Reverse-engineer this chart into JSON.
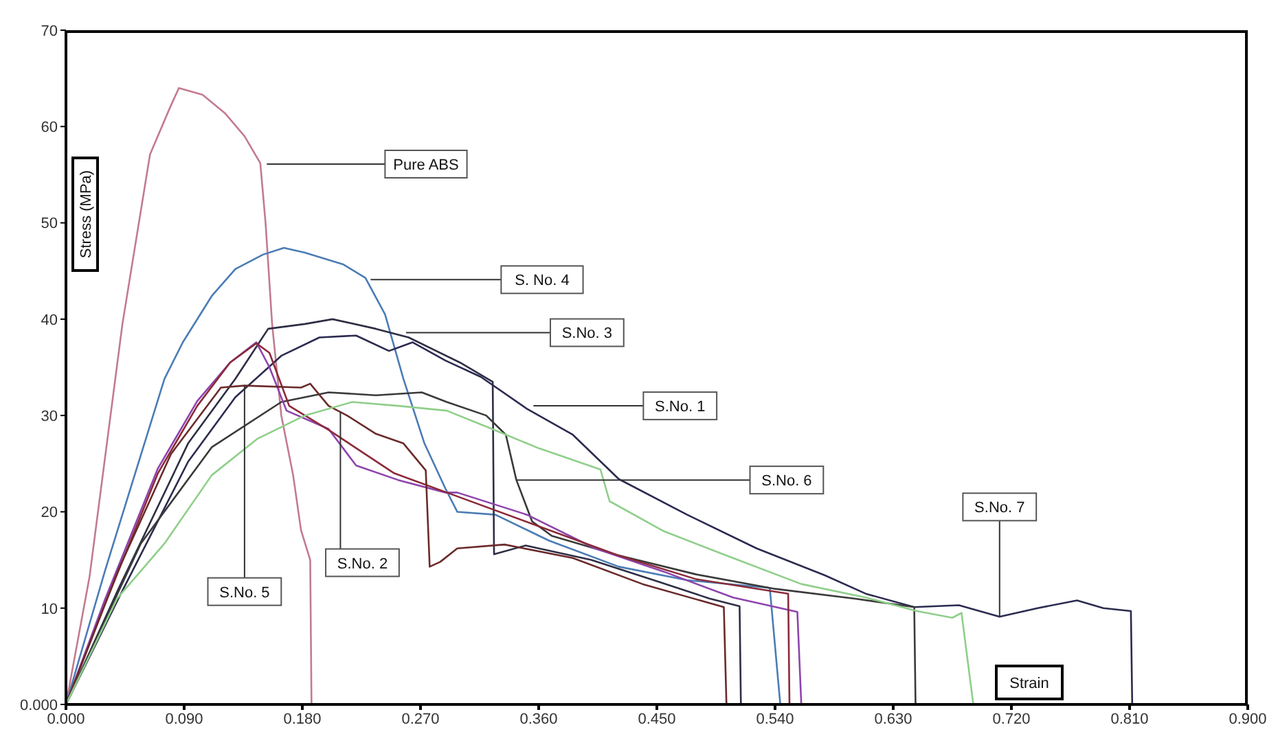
{
  "chart_data": {
    "type": "line",
    "xlabel": "Strain",
    "ylabel": "Stress (MPa)",
    "marker": "none",
    "xlim": [
      0,
      0.9
    ],
    "ylim": [
      0,
      70
    ],
    "xticks": [
      {
        "value": 0,
        "label": "0.000"
      },
      {
        "value": 0.09,
        "label": "0.090"
      },
      {
        "value": 0.18,
        "label": "0.180"
      },
      {
        "value": 0.27,
        "label": "0.270"
      },
      {
        "value": 0.36,
        "label": "0.360"
      },
      {
        "value": 0.45,
        "label": "0.450"
      },
      {
        "value": 0.54,
        "label": "0.540"
      },
      {
        "value": 0.63,
        "label": "0.630"
      },
      {
        "value": 0.72,
        "label": "0.720"
      },
      {
        "value": 0.81,
        "label": "0.810"
      },
      {
        "value": 0.9,
        "label": "0.900"
      }
    ],
    "yticks": [
      {
        "value": 0,
        "label": "0.000"
      },
      10,
      20,
      30,
      40,
      50,
      60,
      70
    ],
    "series": [
      {
        "color": "#c27b8f",
        "x": [
          0,
          0.018,
          0.043,
          0.064,
          0.079,
          0.086,
          0.104,
          0.121,
          0.136,
          0.148,
          0.152,
          0.157,
          0.164,
          0.173,
          0.179,
          0.186,
          0.187
        ],
        "values": [
          0,
          13.3,
          39.5,
          57.1,
          61.9,
          64,
          63.3,
          61.4,
          59,
          56.2,
          50,
          39.5,
          30,
          23.8,
          18.1,
          15,
          0
        ]
      },
      {
        "color": "#4a7cb5",
        "x": [
          0,
          0.03,
          0.075,
          0.089,
          0.111,
          0.129,
          0.15,
          0.166,
          0.182,
          0.211,
          0.228,
          0.243,
          0.257,
          0.273,
          0.289,
          0.298,
          0.327,
          0.368,
          0.421,
          0.473,
          0.536,
          0.544
        ],
        "values": [
          0,
          14,
          33.8,
          37.6,
          42.4,
          45.2,
          46.7,
          47.4,
          46.9,
          45.7,
          44.3,
          40.5,
          33.8,
          27.1,
          22.4,
          20,
          19.7,
          17,
          14.3,
          12.9,
          12.1,
          0
        ]
      },
      {
        "color": "#2e2e45",
        "x": [
          0,
          0.04,
          0.093,
          0.129,
          0.154,
          0.182,
          0.203,
          0.236,
          0.261,
          0.3,
          0.325,
          0.326,
          0.35,
          0.4,
          0.45,
          0.49,
          0.513,
          0.514
        ],
        "values": [
          0,
          12,
          27.1,
          33.8,
          39,
          39.5,
          40,
          39,
          38.1,
          35.5,
          33.5,
          15.6,
          16.5,
          15,
          12.8,
          11,
          10.2,
          0
        ]
      },
      {
        "color": "#2b2b50",
        "x": [
          0,
          0.04,
          0.093,
          0.129,
          0.164,
          0.193,
          0.221,
          0.246,
          0.264,
          0.289,
          0.316,
          0.351,
          0.386,
          0.421,
          0.473,
          0.526,
          0.578,
          0.609,
          0.646,
          0.68,
          0.711,
          0.74,
          0.77,
          0.79,
          0.811,
          0.812
        ],
        "values": [
          0,
          11,
          25.2,
          31.9,
          36.2,
          38.1,
          38.3,
          36.7,
          37.6,
          35.7,
          34,
          30.7,
          28,
          23.4,
          19.7,
          16.2,
          13.4,
          11.5,
          10.1,
          10.3,
          9.1,
          10,
          10.8,
          10,
          9.7,
          0
        ]
      },
      {
        "color": "#3a3a3a",
        "x": [
          0,
          0.057,
          0.111,
          0.164,
          0.2,
          0.236,
          0.271,
          0.29,
          0.32,
          0.335,
          0.343,
          0.355,
          0.37,
          0.42,
          0.48,
          0.54,
          0.6,
          0.646,
          0.647
        ],
        "values": [
          0,
          16.7,
          26.7,
          31.4,
          32.4,
          32.1,
          32.4,
          31.4,
          30,
          28,
          23.3,
          19,
          17.5,
          15.5,
          13.5,
          12,
          11,
          10.1,
          0
        ]
      },
      {
        "color": "#8e44ad",
        "x": [
          0,
          0.03,
          0.07,
          0.1,
          0.125,
          0.145,
          0.155,
          0.168,
          0.2,
          0.221,
          0.253,
          0.289,
          0.298,
          0.351,
          0.403,
          0.455,
          0.508,
          0.557,
          0.56
        ],
        "values": [
          0,
          11,
          24.5,
          31.5,
          35.5,
          37.6,
          35,
          30.5,
          28.6,
          24.8,
          23.3,
          22,
          22,
          19.7,
          16.2,
          13.8,
          11.1,
          9.6,
          0
        ]
      },
      {
        "color": "#8b2a3a",
        "x": [
          0,
          0.03,
          0.07,
          0.1,
          0.125,
          0.145,
          0.155,
          0.17,
          0.2,
          0.25,
          0.3,
          0.36,
          0.42,
          0.48,
          0.55,
          0.551
        ],
        "values": [
          0,
          10.5,
          24,
          31,
          35.5,
          37.5,
          36.5,
          31,
          28.5,
          24,
          21.5,
          18.5,
          15.5,
          13,
          11.5,
          0
        ]
      },
      {
        "color": "#6b2a2a",
        "x": [
          0,
          0.04,
          0.08,
          0.118,
          0.136,
          0.179,
          0.186,
          0.2,
          0.214,
          0.236,
          0.257,
          0.274,
          0.277,
          0.285,
          0.298,
          0.334,
          0.386,
          0.439,
          0.501,
          0.503
        ],
        "values": [
          0,
          14,
          26,
          32.9,
          33.1,
          32.9,
          33.3,
          31,
          30,
          28.1,
          27.1,
          24.3,
          14.3,
          14.8,
          16.2,
          16.6,
          15.2,
          12.5,
          10.1,
          0
        ]
      },
      {
        "color": "#8fcf8a",
        "x": [
          0,
          0.039,
          0.075,
          0.111,
          0.146,
          0.182,
          0.218,
          0.253,
          0.29,
          0.319,
          0.36,
          0.407,
          0.414,
          0.455,
          0.508,
          0.56,
          0.609,
          0.648,
          0.675,
          0.682,
          0.691
        ],
        "values": [
          0,
          11,
          16.7,
          23.8,
          27.6,
          30,
          31.4,
          31,
          30.5,
          28.9,
          26.6,
          24.4,
          21.1,
          18,
          15.2,
          12.5,
          11.1,
          9.7,
          9,
          9.5,
          0
        ]
      }
    ],
    "annotations": [
      {
        "text": "Pure ABS",
        "x": 0.153,
        "y": 56.1
      },
      {
        "text": "S. No. 4",
        "x": 0.232,
        "y": 44.1
      },
      {
        "text": "S.No. 3",
        "x": 0.259,
        "y": 38.6
      },
      {
        "text": "S.No. 1",
        "x": 0.356,
        "y": 31
      },
      {
        "text": "S.No. 6",
        "x": 0.343,
        "y": 23.3
      },
      {
        "text": "S.No. 5",
        "x": 0.136,
        "y": 33.1
      },
      {
        "text": "S.No. 2",
        "x": 0.209,
        "y": 30.4
      },
      {
        "text": "S.No. 7",
        "x": 0.711,
        "y": 9.1
      }
    ]
  }
}
